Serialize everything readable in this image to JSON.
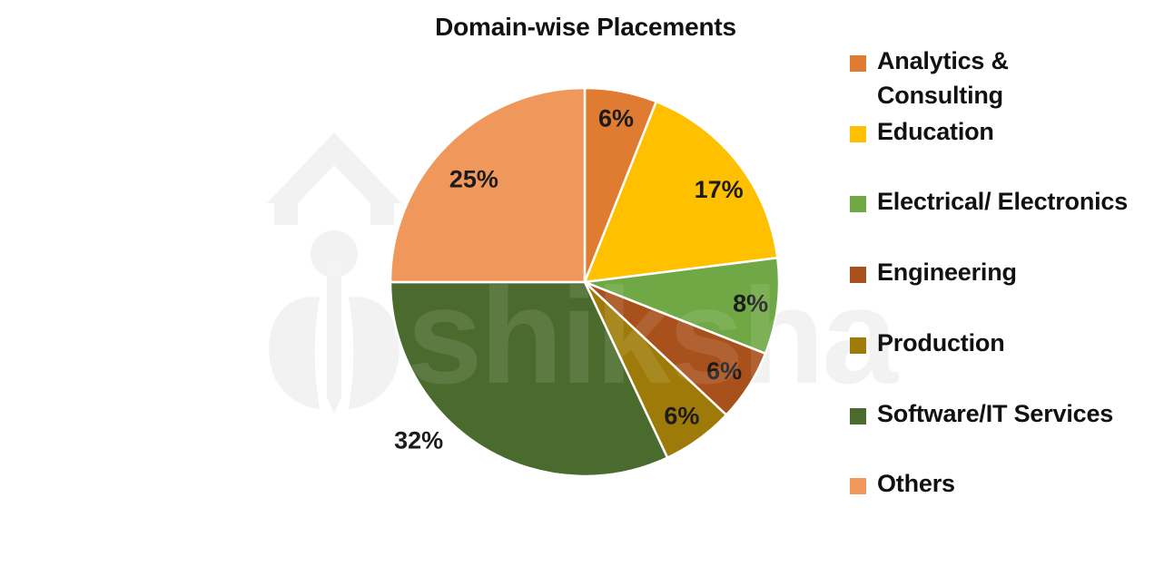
{
  "page": {
    "background": "#ffffff"
  },
  "title": "Domain-wise Placements",
  "watermark": {
    "brand_text": "shiksha"
  },
  "legend": {
    "position": "right",
    "items": [
      "Analytics &\nConsulting",
      "Education",
      "Electrical/ Electronics",
      "Engineering",
      "Production",
      "Software/IT Services",
      "Others"
    ]
  },
  "chart_data": {
    "type": "pie",
    "title": "Domain-wise Placements",
    "categories": [
      "Analytics & Consulting",
      "Education",
      "Electrical/ Electronics",
      "Engineering",
      "Production",
      "Software/IT Services",
      "Others"
    ],
    "values": [
      6,
      17,
      8,
      6,
      6,
      32,
      25
    ],
    "unit": "%",
    "data_labels": [
      "6%",
      "17%",
      "8%",
      "6%",
      "6%",
      "32%",
      "25%"
    ],
    "colors": [
      "#E07B32",
      "#FFC000",
      "#70A845",
      "#A9511C",
      "#9E7B08",
      "#4A6B2D",
      "#F0985C"
    ],
    "slice_border_color": "#FFFFFF",
    "label_color": "#1c1c1c",
    "start_angle_deg": 0,
    "direction": "clockwise",
    "legend_position": "right",
    "total": 100
  }
}
